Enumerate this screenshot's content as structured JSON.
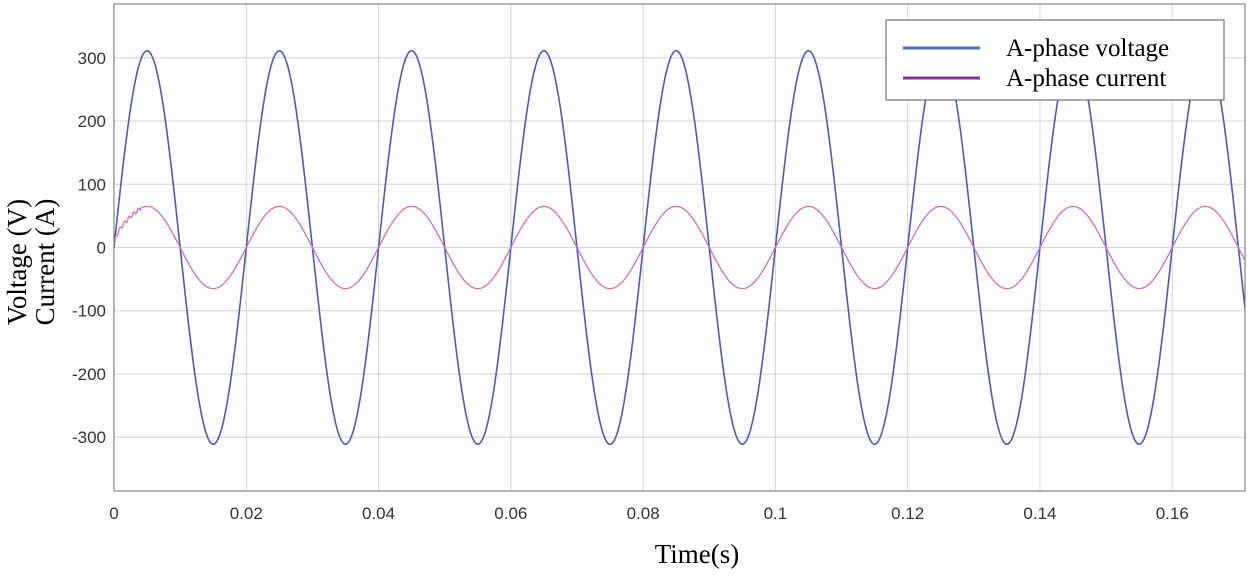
{
  "chart_data": {
    "type": "line",
    "title": "",
    "xlabel": "Time(s)",
    "ylabel": [
      "Voltage (V)",
      "Current (A)"
    ],
    "xlim": [
      0,
      0.171
    ],
    "ylim": [
      -385,
      385
    ],
    "xticks": [
      0,
      0.02,
      0.04,
      0.06,
      0.08,
      0.1,
      0.12,
      0.14,
      0.16
    ],
    "xtick_labels": [
      "0",
      "0.02",
      "0.04",
      "0.06",
      "0.08",
      "0.1",
      "0.12",
      "0.14",
      "0.16"
    ],
    "yticks": [
      300,
      200,
      100,
      0,
      -100,
      -200,
      -300
    ],
    "ytick_labels": [
      "300",
      "200",
      "100",
      "0",
      "-100",
      "-200",
      "-300"
    ],
    "grid": true,
    "legend_position": "top-right",
    "series": [
      {
        "name": "A-phase voltage",
        "color": "#4a5db0",
        "waveform": "sine",
        "amplitude": 311,
        "frequency_hz": 50,
        "phase_deg": 0
      },
      {
        "name": "A-phase current",
        "color": "#d36bc0",
        "waveform": "sine",
        "amplitude": 65,
        "frequency_hz": 50,
        "phase_deg": 0,
        "startup_until_s": 0.004
      }
    ]
  },
  "legend": {
    "line_colors": [
      "#4a6bb3",
      "#7b3a8f"
    ]
  }
}
